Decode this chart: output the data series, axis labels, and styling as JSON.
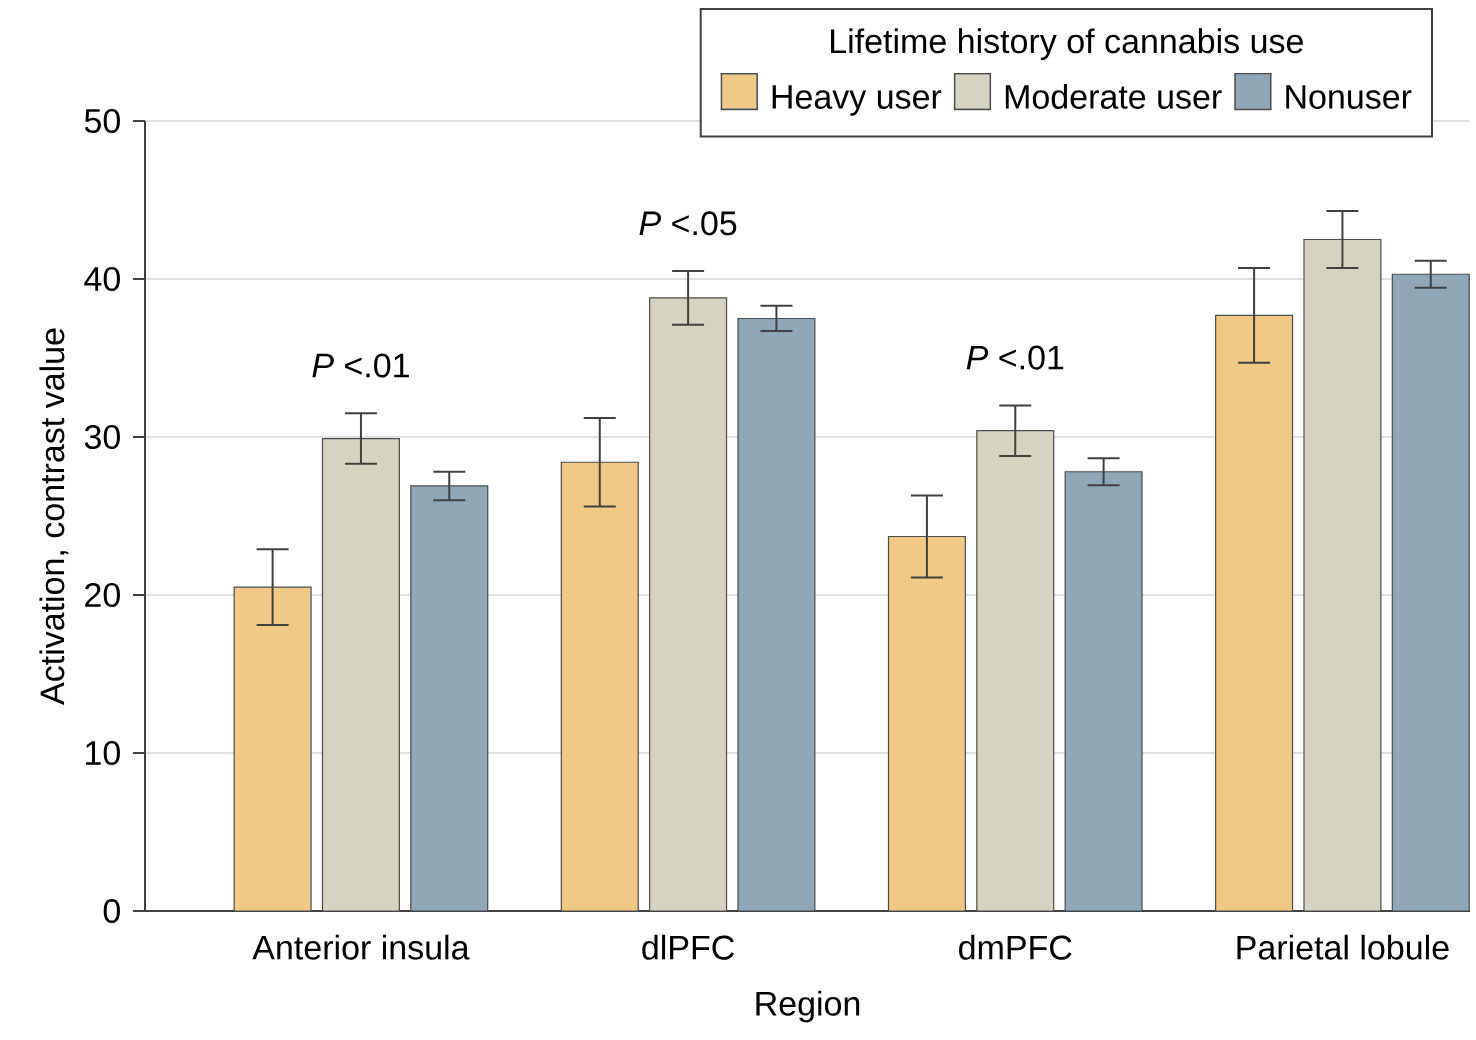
{
  "chart_data": {
    "type": "bar",
    "xlabel": "Region",
    "ylabel": "Activation, contrast value",
    "legend_title": "Lifetime history of cannabis use",
    "categories": [
      "Anterior insula",
      "dlPFC",
      "dmPFC",
      "Parietal lobule"
    ],
    "series": [
      {
        "name": "Heavy user",
        "color": "#f0c987",
        "values": [
          20.5,
          28.4,
          23.7,
          37.7
        ],
        "errors": [
          2.4,
          2.8,
          2.6,
          3.0
        ]
      },
      {
        "name": "Moderate user",
        "color": "#d6d3c2",
        "values": [
          29.9,
          38.8,
          30.4,
          42.5
        ],
        "errors": [
          1.6,
          1.7,
          1.6,
          1.8
        ]
      },
      {
        "name": "Nonuser",
        "color": "#8fa7b6",
        "values": [
          26.9,
          37.5,
          27.8,
          40.3
        ],
        "errors": [
          0.9,
          0.8,
          0.85,
          0.85
        ]
      }
    ],
    "ylim": [
      0,
      50
    ],
    "yticks": [
      0,
      10,
      20,
      30,
      40,
      50
    ],
    "grid": "y",
    "legend": "top right",
    "annotations": [
      "*P* <.01",
      "*P* <.05",
      "*P* <.01"
    ]
  }
}
